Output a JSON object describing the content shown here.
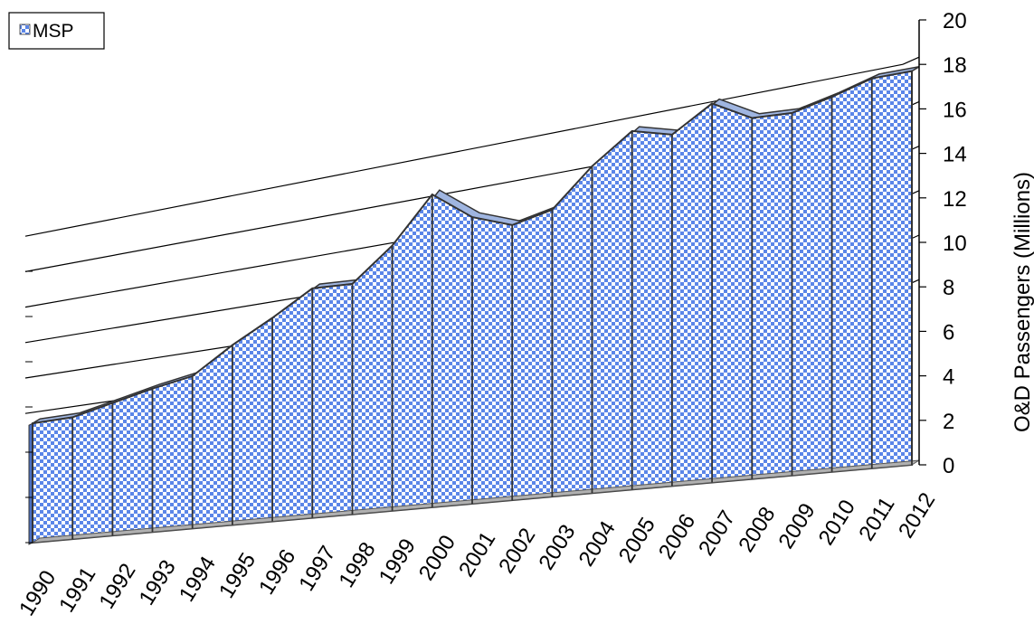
{
  "chart_data": {
    "type": "area",
    "title": "",
    "xlabel": "",
    "ylabel": "O&D Passengers (Millions)",
    "ylim": [
      0,
      20
    ],
    "yticks": [
      0,
      2,
      4,
      6,
      8,
      10,
      12,
      14,
      16,
      18,
      20
    ],
    "legend_position": "top-left",
    "grid": true,
    "categories": [
      "1990",
      "1991",
      "1992",
      "1993",
      "1994",
      "1995",
      "1996",
      "1997",
      "1998",
      "1999",
      "2000",
      "2001",
      "2002",
      "2003",
      "2004",
      "2005",
      "2006",
      "2007",
      "2008",
      "2009",
      "2010",
      "2011",
      "2012"
    ],
    "series": [
      {
        "name": "MSP",
        "values": [
          5.9,
          6.0,
          6.5,
          7.0,
          7.4,
          8.7,
          9.8,
          11.0,
          11.0,
          12.6,
          14.8,
          13.5,
          12.9,
          13.4,
          15.2,
          16.6,
          16.2,
          17.4,
          16.5,
          16.5,
          17.0,
          17.6,
          17.7
        ],
        "color": "#5b86e8"
      }
    ]
  }
}
